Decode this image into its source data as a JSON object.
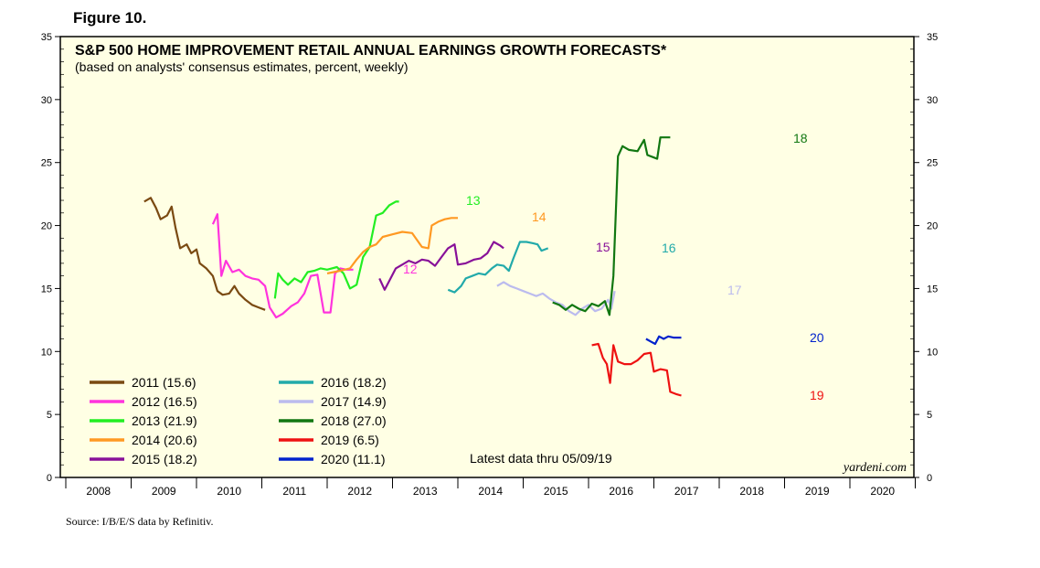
{
  "figure_label": "Figure 10.",
  "source": "Source: I/B/E/S data by Refinitiv.",
  "chart_data": {
    "type": "line",
    "title": "S&P 500 HOME IMPROVEMENT RETAIL ANNUAL EARNINGS GROWTH FORECASTS*",
    "subtitle": "(based on analysts' consensus estimates, percent, weekly)",
    "note": "Latest data thru 05/09/19",
    "watermark": "yardeni.com",
    "ylim": [
      0,
      35
    ],
    "yticks": [
      "0",
      "5",
      "10",
      "15",
      "20",
      "25",
      "30",
      "35"
    ],
    "xlim": [
      2008,
      2021
    ],
    "xticks": [
      "2008",
      "2009",
      "2010",
      "2011",
      "2012",
      "2013",
      "2014",
      "2015",
      "2016",
      "2017",
      "2018",
      "2019",
      "2020"
    ],
    "colors": {
      "background": "#ffffe4",
      "2011": "#7a4a12",
      "2012": "#ff33dd",
      "2013": "#22ee22",
      "2014": "#ff9922",
      "2015": "#881199",
      "2016": "#22aaaa",
      "2017": "#bbbbee",
      "2018": "#117711",
      "2019": "#ee1111",
      "2020": "#0022cc"
    },
    "legend": [
      {
        "key": "2011",
        "label": "2011 (15.6)"
      },
      {
        "key": "2012",
        "label": "2012 (16.5)"
      },
      {
        "key": "2013",
        "label": "2013 (21.9)"
      },
      {
        "key": "2014",
        "label": "2014 (20.6)"
      },
      {
        "key": "2015",
        "label": "2015 (18.2)"
      },
      {
        "key": "2016",
        "label": "2016 (18.2)"
      },
      {
        "key": "2017",
        "label": "2017 (14.9)"
      },
      {
        "key": "2018",
        "label": "2018 (27.0)"
      },
      {
        "key": "2019",
        "label": "2019 (6.5)"
      },
      {
        "key": "2020",
        "label": "2020 (11.1)"
      }
    ],
    "series": [
      {
        "key": "2011",
        "end_label": "",
        "points": [
          [
            2009.2,
            21.9
          ],
          [
            2009.3,
            22.2
          ],
          [
            2009.38,
            21.4
          ],
          [
            2009.45,
            20.5
          ],
          [
            2009.55,
            20.8
          ],
          [
            2009.62,
            21.5
          ],
          [
            2009.68,
            19.8
          ],
          [
            2009.75,
            18.2
          ],
          [
            2009.85,
            18.5
          ],
          [
            2009.92,
            17.8
          ],
          [
            2010.0,
            18.1
          ],
          [
            2010.05,
            17.0
          ],
          [
            2010.15,
            16.6
          ],
          [
            2010.25,
            16.0
          ],
          [
            2010.32,
            14.8
          ],
          [
            2010.4,
            14.5
          ],
          [
            2010.5,
            14.6
          ],
          [
            2010.58,
            15.2
          ],
          [
            2010.65,
            14.6
          ],
          [
            2010.75,
            14.1
          ],
          [
            2010.85,
            13.7
          ],
          [
            2010.95,
            13.5
          ],
          [
            2011.05,
            13.3
          ]
        ]
      },
      {
        "key": "2012",
        "end_label": "",
        "points": [
          [
            2010.25,
            20.1
          ],
          [
            2010.32,
            20.9
          ],
          [
            2010.38,
            16.0
          ],
          [
            2010.45,
            17.2
          ],
          [
            2010.55,
            16.3
          ],
          [
            2010.65,
            16.5
          ],
          [
            2010.75,
            16.0
          ],
          [
            2010.85,
            15.8
          ],
          [
            2010.95,
            15.7
          ],
          [
            2011.05,
            15.2
          ],
          [
            2011.12,
            13.5
          ],
          [
            2011.22,
            12.7
          ],
          [
            2011.32,
            13.0
          ],
          [
            2011.45,
            13.6
          ],
          [
            2011.55,
            13.9
          ],
          [
            2011.65,
            14.6
          ],
          [
            2011.75,
            16.0
          ],
          [
            2011.85,
            16.1
          ],
          [
            2011.95,
            13.1
          ],
          [
            2012.05,
            13.1
          ],
          [
            2012.12,
            16.2
          ],
          [
            2012.2,
            16.6
          ],
          [
            2012.3,
            16.5
          ],
          [
            2012.4,
            16.5
          ]
        ]
      },
      {
        "key": "2012",
        "end_label": "12",
        "points": []
      },
      {
        "key": "2013",
        "end_label": "13",
        "points": [
          [
            2011.2,
            14.2
          ],
          [
            2011.25,
            16.2
          ],
          [
            2011.32,
            15.7
          ],
          [
            2011.4,
            15.3
          ],
          [
            2011.5,
            15.8
          ],
          [
            2011.6,
            15.5
          ],
          [
            2011.7,
            16.3
          ],
          [
            2011.8,
            16.4
          ],
          [
            2011.9,
            16.6
          ],
          [
            2012.0,
            16.5
          ],
          [
            2012.15,
            16.7
          ],
          [
            2012.25,
            16.2
          ],
          [
            2012.35,
            15.0
          ],
          [
            2012.45,
            15.3
          ],
          [
            2012.55,
            17.5
          ],
          [
            2012.65,
            18.3
          ],
          [
            2012.75,
            20.8
          ],
          [
            2012.85,
            21.0
          ],
          [
            2012.95,
            21.6
          ],
          [
            2013.05,
            21.9
          ],
          [
            2013.1,
            21.9
          ]
        ]
      },
      {
        "key": "2014",
        "end_label": "14",
        "points": [
          [
            2012.0,
            16.2
          ],
          [
            2012.1,
            16.3
          ],
          [
            2012.2,
            16.4
          ],
          [
            2012.35,
            16.6
          ],
          [
            2012.45,
            17.3
          ],
          [
            2012.55,
            17.9
          ],
          [
            2012.65,
            18.3
          ],
          [
            2012.75,
            18.5
          ],
          [
            2012.85,
            19.1
          ],
          [
            2013.0,
            19.3
          ],
          [
            2013.15,
            19.5
          ],
          [
            2013.3,
            19.4
          ],
          [
            2013.45,
            18.3
          ],
          [
            2013.55,
            18.2
          ],
          [
            2013.6,
            20.0
          ],
          [
            2013.7,
            20.3
          ],
          [
            2013.8,
            20.5
          ],
          [
            2013.9,
            20.6
          ],
          [
            2014.0,
            20.6
          ]
        ]
      },
      {
        "key": "2015",
        "end_label": "15",
        "points": [
          [
            2012.8,
            15.8
          ],
          [
            2012.88,
            14.9
          ],
          [
            2012.95,
            15.6
          ],
          [
            2013.05,
            16.6
          ],
          [
            2013.15,
            16.9
          ],
          [
            2013.25,
            17.2
          ],
          [
            2013.35,
            17.0
          ],
          [
            2013.45,
            17.3
          ],
          [
            2013.55,
            17.2
          ],
          [
            2013.65,
            16.8
          ],
          [
            2013.75,
            17.5
          ],
          [
            2013.85,
            18.2
          ],
          [
            2013.95,
            18.5
          ],
          [
            2014.0,
            16.9
          ],
          [
            2014.12,
            17.0
          ],
          [
            2014.25,
            17.3
          ],
          [
            2014.35,
            17.4
          ],
          [
            2014.45,
            17.8
          ],
          [
            2014.55,
            18.7
          ],
          [
            2014.65,
            18.4
          ],
          [
            2014.7,
            18.2
          ]
        ]
      },
      {
        "key": "2016",
        "end_label": "16",
        "points": [
          [
            2013.85,
            14.9
          ],
          [
            2013.95,
            14.7
          ],
          [
            2014.05,
            15.2
          ],
          [
            2014.12,
            15.8
          ],
          [
            2014.22,
            16.0
          ],
          [
            2014.32,
            16.2
          ],
          [
            2014.42,
            16.1
          ],
          [
            2014.52,
            16.6
          ],
          [
            2014.6,
            16.9
          ],
          [
            2014.7,
            16.8
          ],
          [
            2014.78,
            16.4
          ],
          [
            2014.85,
            17.4
          ],
          [
            2014.95,
            18.7
          ],
          [
            2015.05,
            18.7
          ],
          [
            2015.15,
            18.6
          ],
          [
            2015.22,
            18.5
          ],
          [
            2015.28,
            18.0
          ],
          [
            2015.38,
            18.2
          ]
        ]
      },
      {
        "key": "2017",
        "end_label": "17",
        "points": [
          [
            2014.6,
            15.2
          ],
          [
            2014.7,
            15.5
          ],
          [
            2014.8,
            15.2
          ],
          [
            2014.9,
            15.0
          ],
          [
            2015.0,
            14.8
          ],
          [
            2015.1,
            14.6
          ],
          [
            2015.2,
            14.4
          ],
          [
            2015.3,
            14.6
          ],
          [
            2015.4,
            14.2
          ],
          [
            2015.5,
            13.9
          ],
          [
            2015.6,
            13.7
          ],
          [
            2015.7,
            13.2
          ],
          [
            2015.8,
            12.9
          ],
          [
            2015.9,
            13.4
          ],
          [
            2016.0,
            13.7
          ],
          [
            2016.1,
            13.2
          ],
          [
            2016.2,
            13.4
          ],
          [
            2016.3,
            14.1
          ],
          [
            2016.35,
            13.4
          ],
          [
            2016.4,
            14.8
          ]
        ]
      },
      {
        "key": "2018",
        "end_label": "18",
        "points": [
          [
            2015.45,
            13.9
          ],
          [
            2015.55,
            13.7
          ],
          [
            2015.65,
            13.3
          ],
          [
            2015.75,
            13.7
          ],
          [
            2015.85,
            13.4
          ],
          [
            2015.95,
            13.2
          ],
          [
            2016.05,
            13.8
          ],
          [
            2016.15,
            13.6
          ],
          [
            2016.25,
            14.0
          ],
          [
            2016.32,
            12.9
          ],
          [
            2016.38,
            16.0
          ],
          [
            2016.45,
            25.5
          ],
          [
            2016.52,
            26.3
          ],
          [
            2016.62,
            26.0
          ],
          [
            2016.75,
            25.9
          ],
          [
            2016.85,
            26.8
          ],
          [
            2016.9,
            25.6
          ],
          [
            2017.0,
            25.4
          ],
          [
            2017.05,
            25.3
          ],
          [
            2017.1,
            27.0
          ],
          [
            2017.2,
            27.0
          ],
          [
            2017.25,
            27.0
          ]
        ]
      },
      {
        "key": "2019",
        "end_label": "19",
        "points": [
          [
            2016.05,
            10.5
          ],
          [
            2016.15,
            10.6
          ],
          [
            2016.22,
            9.5
          ],
          [
            2016.28,
            9.0
          ],
          [
            2016.33,
            7.5
          ],
          [
            2016.38,
            10.5
          ],
          [
            2016.45,
            9.2
          ],
          [
            2016.55,
            9.0
          ],
          [
            2016.65,
            9.0
          ],
          [
            2016.75,
            9.3
          ],
          [
            2016.85,
            9.8
          ],
          [
            2016.95,
            9.9
          ],
          [
            2017.0,
            8.4
          ],
          [
            2017.1,
            8.6
          ],
          [
            2017.2,
            8.5
          ],
          [
            2017.25,
            6.8
          ],
          [
            2017.35,
            6.6
          ],
          [
            2017.42,
            6.5
          ]
        ]
      },
      {
        "key": "2020",
        "end_label": "20",
        "points": [
          [
            2016.88,
            11.0
          ],
          [
            2016.95,
            10.8
          ],
          [
            2017.02,
            10.6
          ],
          [
            2017.08,
            11.2
          ],
          [
            2017.15,
            11.0
          ],
          [
            2017.22,
            11.2
          ],
          [
            2017.3,
            11.1
          ],
          [
            2017.42,
            11.1
          ]
        ]
      }
    ]
  }
}
